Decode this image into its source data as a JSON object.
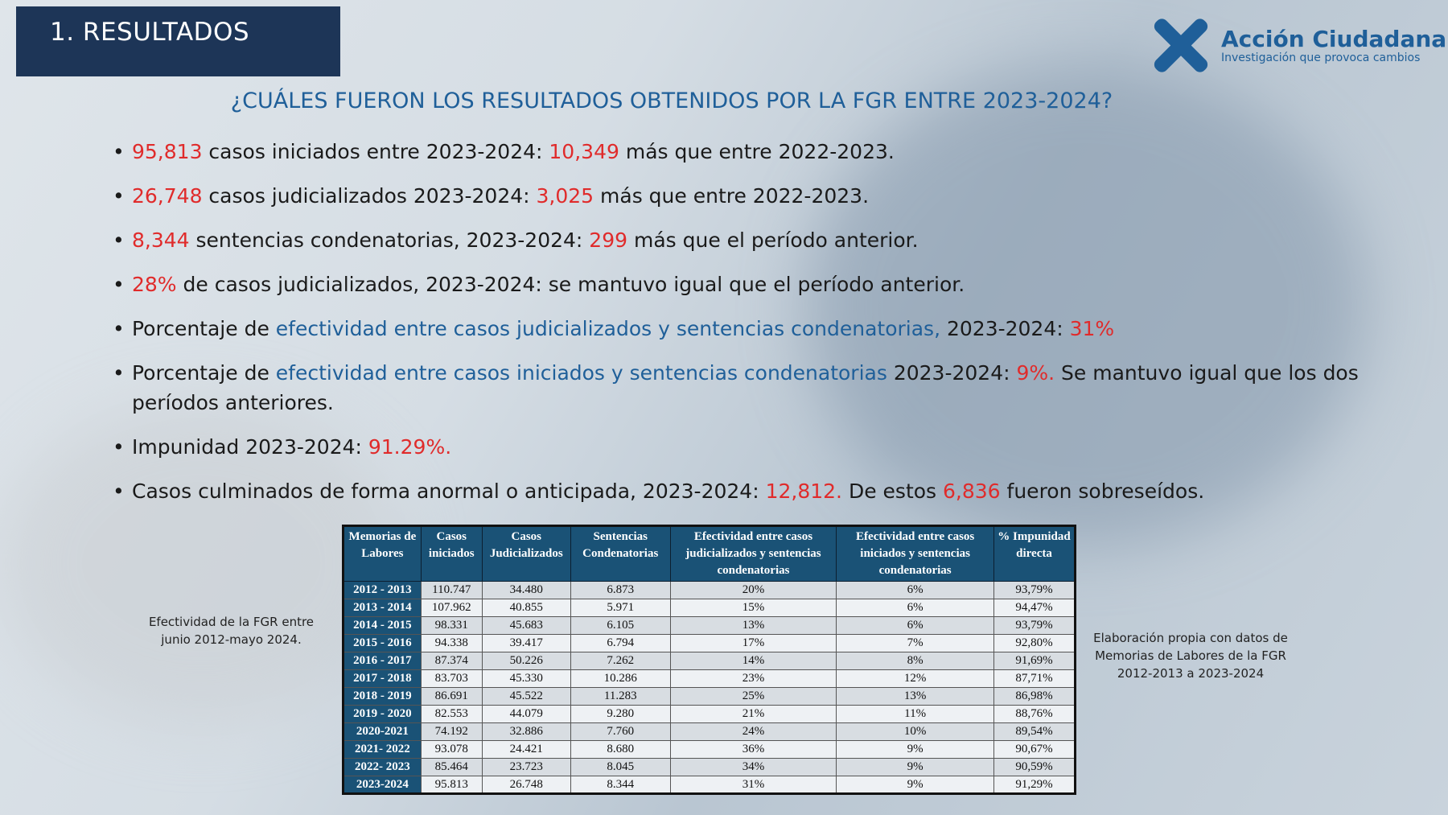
{
  "title": "1. RESULTADOS",
  "logo": {
    "name": "Acción Ciudadana",
    "tagline": "Investigación que provoca cambios"
  },
  "heading": "¿CUÁLES FUERON LOS RESULTADOS OBTENIDOS POR LA FGR ENTRE 2023-2024?",
  "bullets": [
    {
      "a": "95,813",
      "b": " casos iniciados entre 2023-2024: ",
      "c": "10,349",
      "d": " más que entre 2022-2023."
    },
    {
      "a": "26,748",
      "b": " casos judicializados 2023-2024:  ",
      "c": "3,025",
      "d": " más que entre 2022-2023."
    },
    {
      "a": "8,344",
      "b": " sentencias condenatorias, 2023-2024: ",
      "c": "299",
      "d": " más que el período anterior."
    },
    {
      "a": "28%",
      "b": " de casos judicializados, 2023-2024:  se mantuvo igual que el período anterior."
    },
    {
      "a": "Porcentaje de ",
      "b": "efectividad entre casos judicializados y sentencias condenatorias,",
      "c": " 2023-2024: ",
      "d": "31%"
    },
    {
      "a": "Porcentaje de ",
      "b": "efectividad entre casos iniciados y sentencias condenatorias",
      "c": " 2023-2024: ",
      "d": "9%.",
      "e": " Se mantuvo igual que los dos períodos anteriores."
    },
    {
      "a": "Impunidad 2023-2024:  ",
      "b": "91.29%."
    },
    {
      "a": "Casos culminados de forma anormal o anticipada, 2023-2024: ",
      "b": "12,812.",
      "c": " De estos ",
      "d": "6,836",
      "e": " fueron sobreseídos."
    }
  ],
  "left_note": "Efectividad de la FGR entre junio 2012-mayo 2024.",
  "right_note": "Elaboración propia con datos de Memorias de Labores de la FGR 2012-2013 a 2023-2024",
  "table": {
    "headers": [
      "Memorias de Labores",
      "Casos iniciados",
      "Casos Judicializados",
      "Sentencias Condenatorias",
      "Efectividad entre casos judicializados y sentencias condenatorias",
      "Efectividad entre casos iniciados y sentencias condenatorias",
      "% Impunidad directa"
    ],
    "rows": [
      [
        "2012 - 2013",
        "110.747",
        "34.480",
        "6.873",
        "20%",
        "6%",
        "93,79%"
      ],
      [
        "2013 - 2014",
        "107.962",
        "40.855",
        "5.971",
        "15%",
        "6%",
        "94,47%"
      ],
      [
        "2014 - 2015",
        "98.331",
        "45.683",
        "6.105",
        "13%",
        "6%",
        "93,79%"
      ],
      [
        "2015 - 2016",
        "94.338",
        "39.417",
        "6.794",
        "17%",
        "7%",
        "92,80%"
      ],
      [
        "2016 - 2017",
        "87.374",
        "50.226",
        "7.262",
        "14%",
        "8%",
        "91,69%"
      ],
      [
        "2017 - 2018",
        "83.703",
        "45.330",
        "10.286",
        "23%",
        "12%",
        "87,71%"
      ],
      [
        "2018 - 2019",
        "86.691",
        "45.522",
        "11.283",
        "25%",
        "13%",
        "86,98%"
      ],
      [
        "2019 - 2020",
        "82.553",
        "44.079",
        "9.280",
        "21%",
        "11%",
        "88,76%"
      ],
      [
        "2020-2021",
        "74.192",
        "32.886",
        "7.760",
        "24%",
        "10%",
        "89,54%"
      ],
      [
        "2021- 2022",
        "93.078",
        "24.421",
        "8.680",
        "36%",
        "9%",
        "90,67%"
      ],
      [
        "2022- 2023",
        "85.464",
        "23.723",
        "8.045",
        "34%",
        "9%",
        "90,59%"
      ],
      [
        "2023-2024",
        "95.813",
        "26.748",
        "8.344",
        "31%",
        "9%",
        "91,29%"
      ]
    ]
  }
}
